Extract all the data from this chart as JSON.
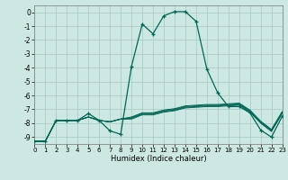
{
  "xlabel": "Humidex (Indice chaleur)",
  "xlim": [
    0,
    23
  ],
  "ylim": [
    -9.5,
    0.5
  ],
  "yticks": [
    0,
    -1,
    -2,
    -3,
    -4,
    -5,
    -6,
    -7,
    -8,
    -9
  ],
  "xticks": [
    0,
    1,
    2,
    3,
    4,
    5,
    6,
    7,
    8,
    9,
    10,
    11,
    12,
    13,
    14,
    15,
    16,
    17,
    18,
    19,
    20,
    21,
    22,
    23
  ],
  "bg_color": "#cde8e2",
  "grid_color": "#aacfc8",
  "line_color": "#006655",
  "x": [
    0,
    1,
    2,
    3,
    4,
    5,
    6,
    7,
    8,
    9,
    10,
    11,
    12,
    13,
    14,
    15,
    16,
    17,
    18,
    19,
    20,
    21,
    22,
    23
  ],
  "main_y": [
    -9.3,
    -9.3,
    -7.8,
    -7.8,
    -7.8,
    -7.3,
    -7.8,
    -8.55,
    -8.8,
    -3.9,
    -0.85,
    -1.55,
    -0.25,
    0.05,
    0.05,
    -0.65,
    -4.1,
    -5.8,
    -6.8,
    -6.8,
    -7.25,
    -8.5,
    -9.0,
    -7.5
  ],
  "flat_lines": [
    [
      -9.3,
      -9.3,
      -7.8,
      -7.8,
      -7.8,
      -7.55,
      -7.8,
      -7.9,
      -7.7,
      -7.7,
      -7.4,
      -7.4,
      -7.2,
      -7.1,
      -6.9,
      -6.85,
      -6.8,
      -6.8,
      -6.75,
      -6.7,
      -7.2,
      -8.0,
      -8.6,
      -7.3
    ],
    [
      -9.3,
      -9.3,
      -7.8,
      -7.8,
      -7.8,
      -7.55,
      -7.8,
      -7.9,
      -7.7,
      -7.65,
      -7.35,
      -7.35,
      -7.15,
      -7.05,
      -6.85,
      -6.8,
      -6.75,
      -6.75,
      -6.7,
      -6.65,
      -7.15,
      -7.95,
      -8.55,
      -7.25
    ],
    [
      -9.3,
      -9.3,
      -7.8,
      -7.8,
      -7.8,
      -7.55,
      -7.8,
      -7.9,
      -7.7,
      -7.6,
      -7.3,
      -7.3,
      -7.1,
      -7.0,
      -6.8,
      -6.75,
      -6.7,
      -6.7,
      -6.65,
      -6.6,
      -7.1,
      -7.9,
      -8.5,
      -7.2
    ],
    [
      -9.3,
      -9.3,
      -7.8,
      -7.8,
      -7.8,
      -7.55,
      -7.8,
      -7.9,
      -7.7,
      -7.55,
      -7.25,
      -7.25,
      -7.05,
      -6.95,
      -6.75,
      -6.7,
      -6.65,
      -6.65,
      -6.6,
      -6.55,
      -7.05,
      -7.85,
      -8.45,
      -7.15
    ]
  ]
}
